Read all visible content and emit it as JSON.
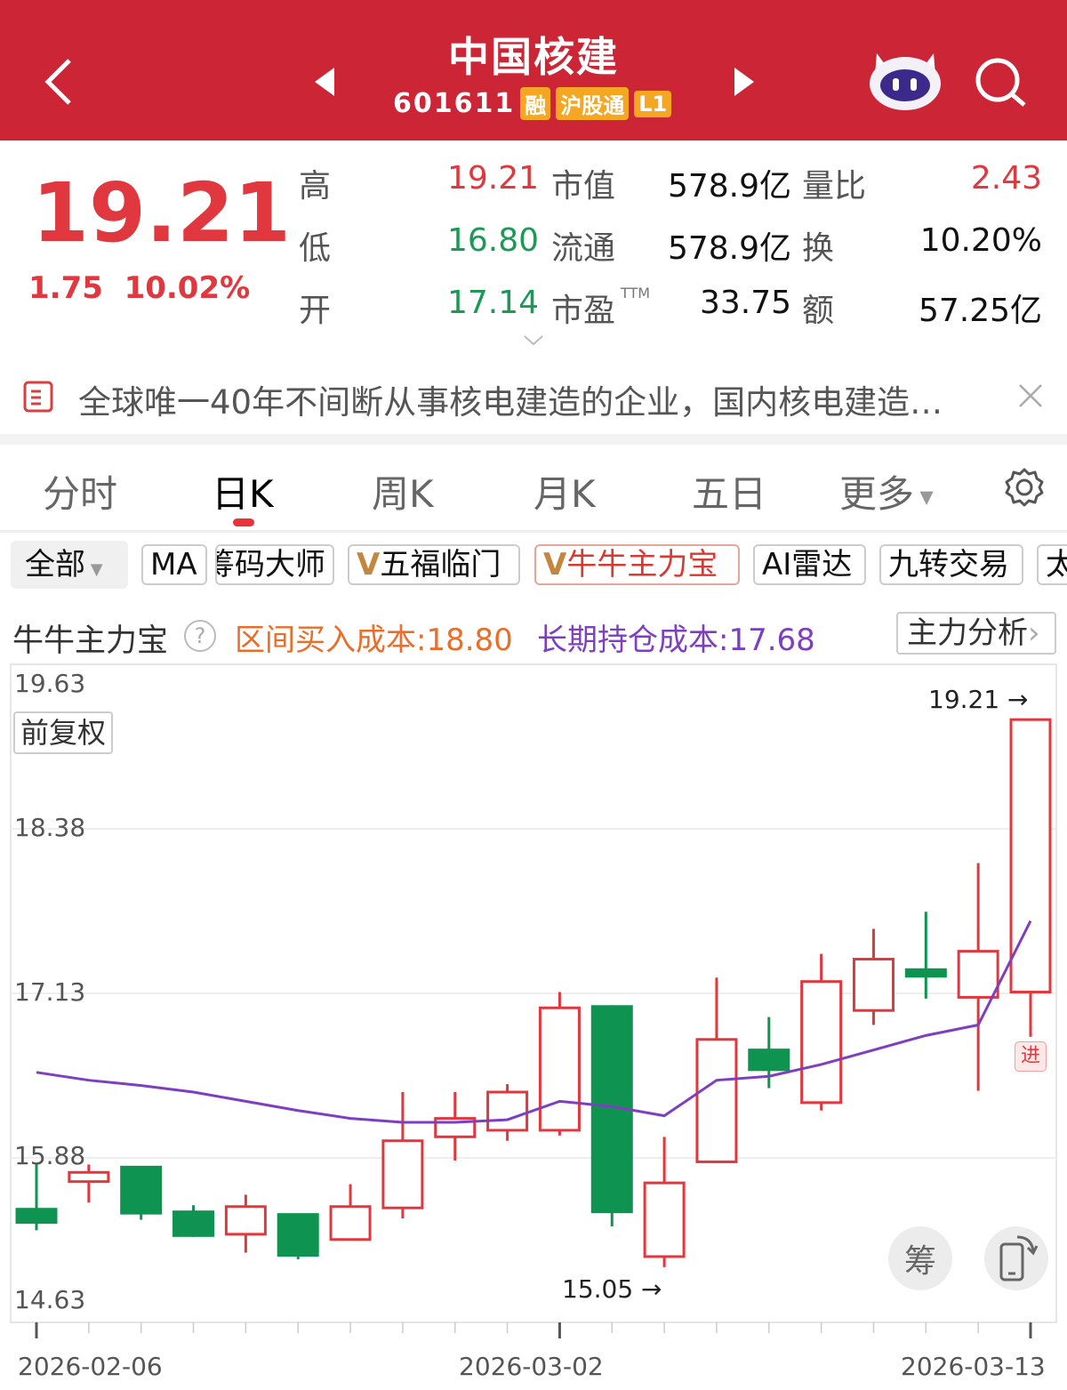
{
  "header": {
    "title": "中国核建",
    "code": "601611",
    "badges": [
      "融",
      "沪股通",
      "L1"
    ],
    "icons": [
      "back-arrow-icon",
      "prev-stock-icon",
      "next-stock-icon",
      "robot-assistant-icon",
      "search-icon"
    ],
    "bg_color": "#cb2536"
  },
  "quote": {
    "price": "19.21",
    "change": "1.75",
    "change_pct": "10.02%",
    "rows": [
      [
        {
          "label": "高",
          "value": "19.21",
          "color": "red"
        },
        {
          "label": "市值",
          "value": "578.9亿"
        },
        {
          "label": "量比",
          "value": "2.43",
          "color": "red"
        }
      ],
      [
        {
          "label": "低",
          "value": "16.80",
          "color": "green"
        },
        {
          "label": "流通",
          "value": "578.9亿"
        },
        {
          "label": "换",
          "value": "10.20%"
        }
      ],
      [
        {
          "label": "开",
          "value": "17.14",
          "color": "green"
        },
        {
          "label": "市盈",
          "sup": "TTM",
          "value": "33.75"
        },
        {
          "label": "额",
          "value": "57.25亿"
        }
      ]
    ]
  },
  "news": {
    "text": "全球唯一40年不间断从事核电建造的企业，国内核电建造…",
    "icon": "document-icon",
    "close_icon": "close-icon"
  },
  "period_tabs": {
    "items": [
      "分时",
      "日K",
      "周K",
      "月K",
      "五日",
      "更多"
    ],
    "active": "日K",
    "settings_icon": "gear-icon"
  },
  "indicators": {
    "all_label": "全部",
    "items": [
      "MA",
      "筹码大师",
      "五福临门",
      "牛牛主力宝",
      "AI雷达",
      "九转交易",
      "太"
    ],
    "vip": [
      "五福临门",
      "牛牛主力宝"
    ],
    "active": "牛牛主力宝",
    "vip_mark": "V"
  },
  "info": {
    "name": "牛牛主力宝",
    "help": "?",
    "range_cost": "区间买入成本:18.80",
    "long_cost": "长期持仓成本:17.68",
    "analysis_button": "主力分析"
  },
  "chart": {
    "adjust_label": "前复权",
    "high_marker": "19.21 →",
    "low_marker": "15.05 →",
    "signal_label": "进",
    "chip_button": "筹",
    "rotate_icon": "rotate-screen-icon"
  },
  "chart_data": {
    "type": "candlestick",
    "ylim": [
      14.63,
      19.63
    ],
    "yticks": [
      "19.63",
      "18.38",
      "17.13",
      "15.88",
      "14.63"
    ],
    "grid": true,
    "up_color": "#e0383e",
    "down_color": "#0e9350",
    "line_color": "#7d3fc0",
    "xtick_labels": [
      {
        "index": 0,
        "label": "2026-02-06"
      },
      {
        "index": 10,
        "label": "2026-03-02"
      },
      {
        "index": 19,
        "label": "2026-03-13"
      }
    ],
    "candles": [
      {
        "o": 15.49,
        "h": 15.84,
        "l": 15.33,
        "c": 15.39
      },
      {
        "o": 15.7,
        "h": 15.83,
        "l": 15.54,
        "c": 15.77
      },
      {
        "o": 15.81,
        "h": 15.81,
        "l": 15.41,
        "c": 15.46
      },
      {
        "o": 15.47,
        "h": 15.52,
        "l": 15.28,
        "c": 15.29
      },
      {
        "o": 15.3,
        "h": 15.6,
        "l": 15.16,
        "c": 15.51
      },
      {
        "o": 15.45,
        "h": 15.45,
        "l": 15.11,
        "c": 15.14
      },
      {
        "o": 15.26,
        "h": 15.68,
        "l": 15.26,
        "c": 15.51
      },
      {
        "o": 15.5,
        "h": 16.38,
        "l": 15.42,
        "c": 16.01
      },
      {
        "o": 16.04,
        "h": 16.38,
        "l": 15.86,
        "c": 16.18
      },
      {
        "o": 16.09,
        "h": 16.44,
        "l": 16.01,
        "c": 16.38
      },
      {
        "o": 16.09,
        "h": 17.14,
        "l": 16.05,
        "c": 17.02
      },
      {
        "o": 17.03,
        "h": 17.04,
        "l": 15.36,
        "c": 15.47
      },
      {
        "o": 15.13,
        "h": 16.04,
        "l": 15.05,
        "c": 15.69
      },
      {
        "o": 15.85,
        "h": 17.25,
        "l": 15.85,
        "c": 16.78
      },
      {
        "o": 16.7,
        "h": 16.95,
        "l": 16.41,
        "c": 16.55
      },
      {
        "o": 16.3,
        "h": 17.43,
        "l": 16.24,
        "c": 17.22
      },
      {
        "o": 17.0,
        "h": 17.62,
        "l": 16.89,
        "c": 17.39
      },
      {
        "o": 17.31,
        "h": 17.75,
        "l": 17.09,
        "c": 17.26
      },
      {
        "o": 17.1,
        "h": 18.12,
        "l": 16.39,
        "c": 17.45
      },
      {
        "o": 17.14,
        "h": 19.21,
        "l": 16.8,
        "c": 19.21
      }
    ],
    "cost_line": [
      16.53,
      16.47,
      16.43,
      16.38,
      16.31,
      16.24,
      16.18,
      16.15,
      16.15,
      16.17,
      16.31,
      16.27,
      16.2,
      16.47,
      16.5,
      16.59,
      16.7,
      16.81,
      16.89,
      17.68
    ]
  }
}
